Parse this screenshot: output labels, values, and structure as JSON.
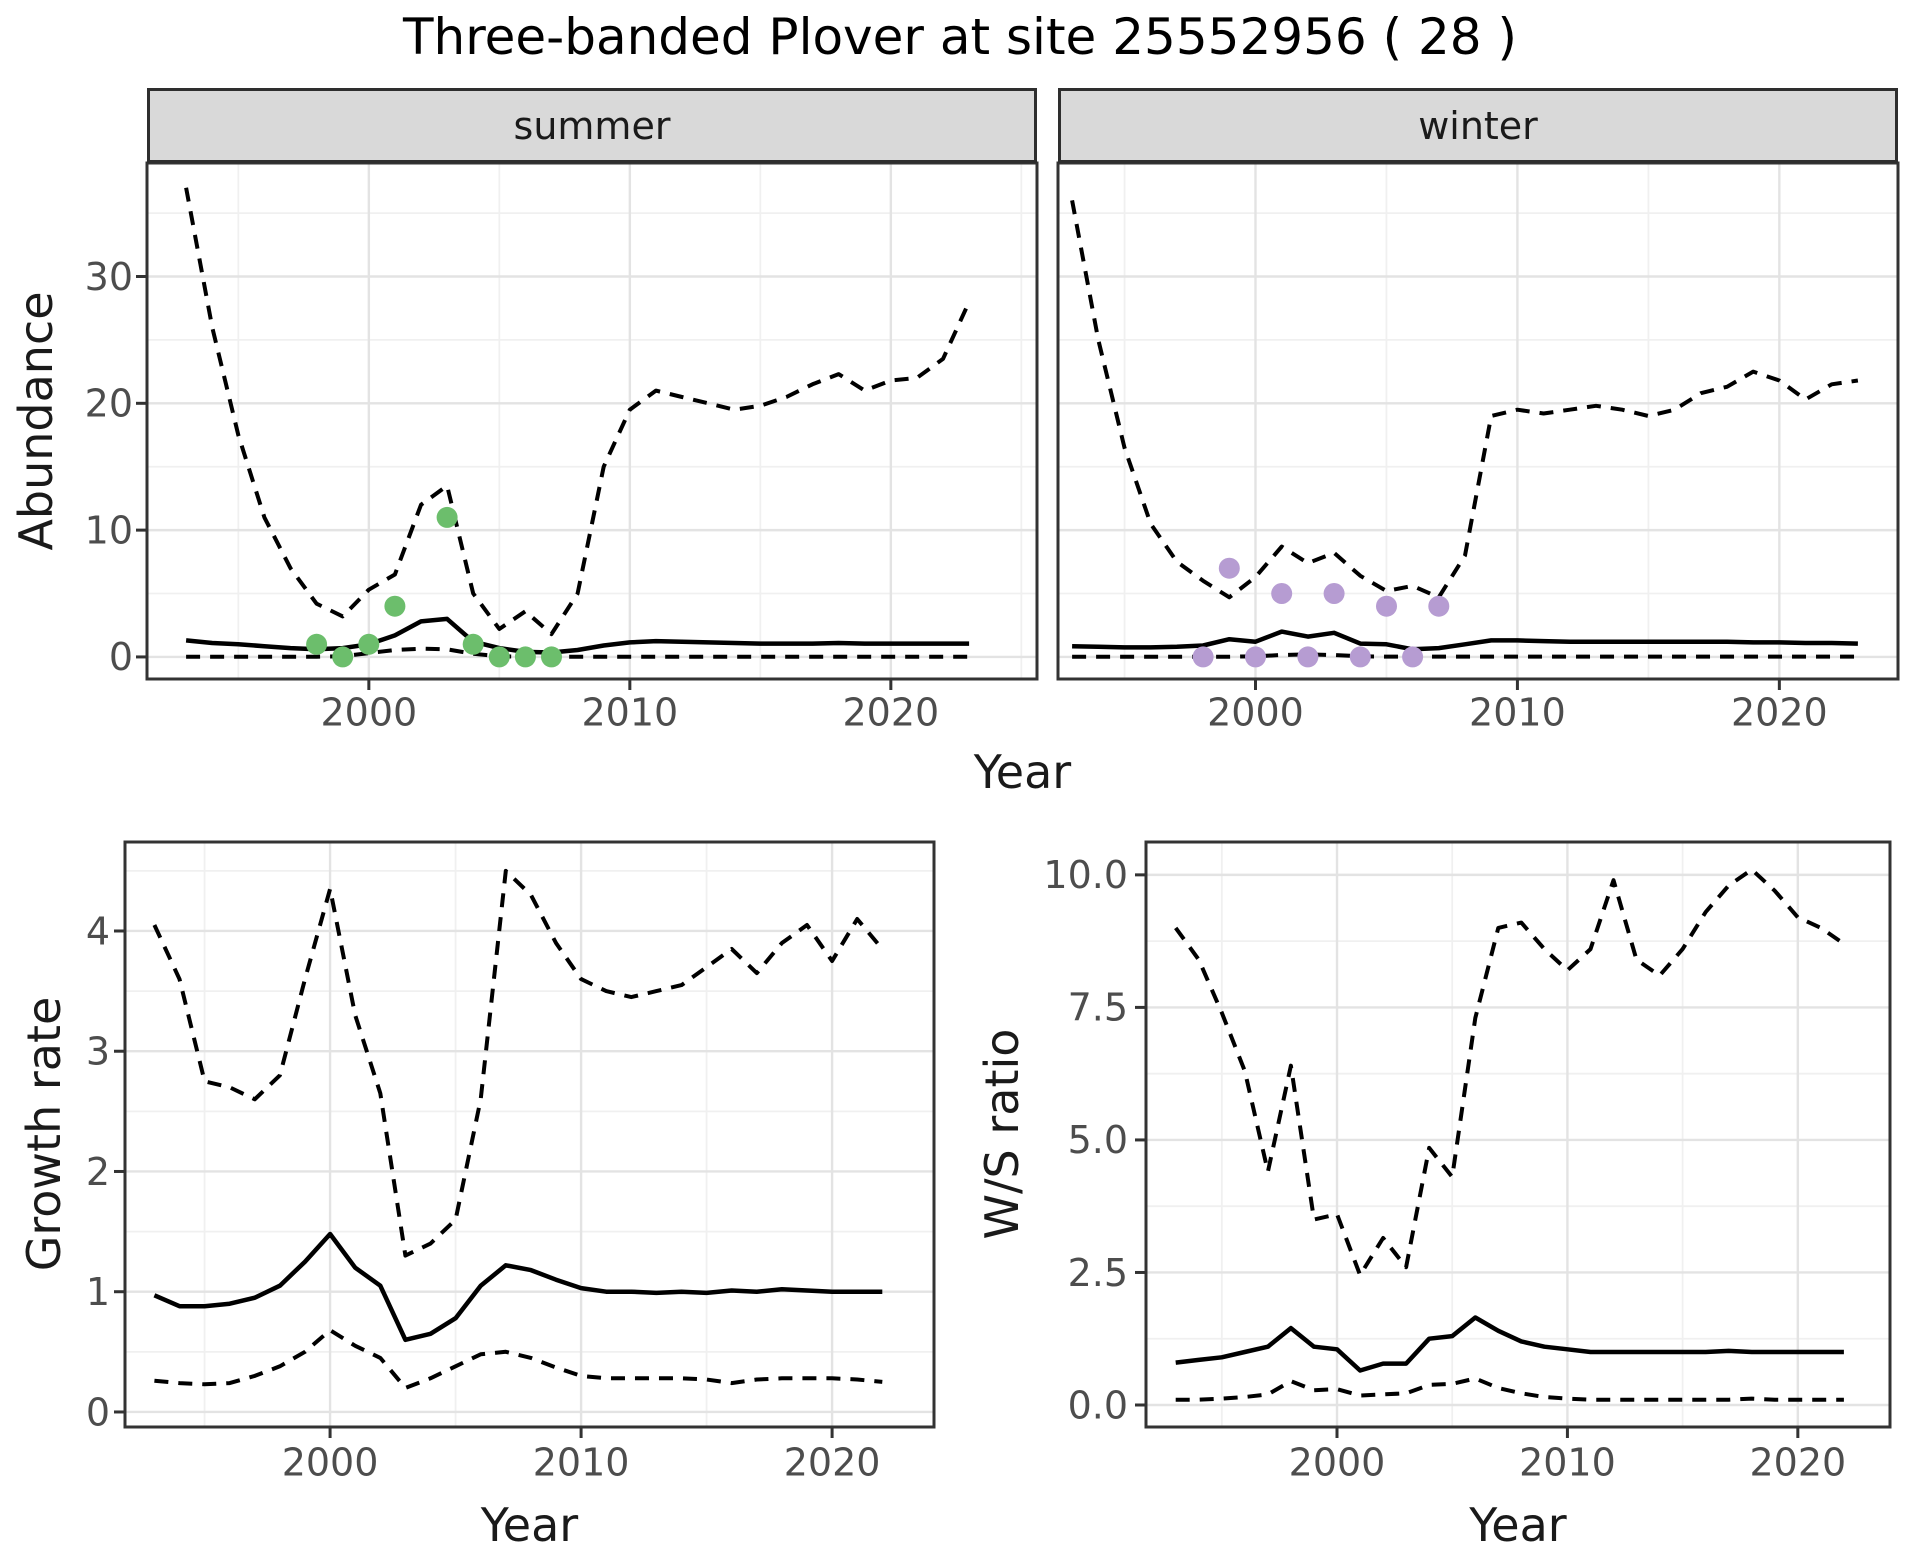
{
  "title": "Three-banded Plover at site 25552956 ( 28 )",
  "facets": {
    "summer": "summer",
    "winter": "winter"
  },
  "axis_titles": {
    "abundance": "Abundance",
    "year": "Year",
    "growth": "Growth rate",
    "ws": "W/S ratio"
  },
  "colors": {
    "summer_points": "#6cbe6c",
    "winter_points": "#b69cd2",
    "line": "#000000",
    "grid_major": "#e3e3e3",
    "grid_minor": "#f0f0f0",
    "panel_border": "#333333",
    "strip_bg": "#d9d9d9",
    "tick_text": "#4d4d4d",
    "text": "#1a1a1a"
  },
  "chart_data": [
    {
      "type": "line",
      "facet": "summer",
      "title": "Abundance - summer facet",
      "xlabel": "Year",
      "ylabel": "Abundance",
      "xlim": [
        1991.5,
        2025.6
      ],
      "ylim": [
        -1.74,
        38.95
      ],
      "grid": true,
      "x": [
        1993,
        1994,
        1995,
        1996,
        1997,
        1998,
        1999,
        2000,
        2001,
        2002,
        2003,
        2004,
        2005,
        2006,
        2007,
        2008,
        2009,
        2010,
        2011,
        2012,
        2013,
        2014,
        2015,
        2016,
        2017,
        2018,
        2019,
        2020,
        2021,
        2022,
        2023
      ],
      "series": [
        {
          "name": "upper-ci",
          "style": "dashed",
          "values": [
            37,
            26,
            17.5,
            11,
            7,
            4.2,
            3.2,
            5.3,
            6.5,
            12,
            13.5,
            5,
            2.2,
            3.6,
            1.8,
            5,
            15,
            19.5,
            21,
            20.5,
            20,
            19.5,
            19.8,
            20.5,
            21.5,
            22.3,
            21,
            21.8,
            22,
            23.5,
            28
          ]
        },
        {
          "name": "median",
          "style": "solid",
          "values": [
            1.3,
            1.1,
            1.0,
            0.85,
            0.7,
            0.6,
            0.7,
            1.0,
            1.7,
            2.8,
            3.0,
            1.2,
            0.7,
            0.4,
            0.35,
            0.55,
            0.9,
            1.15,
            1.25,
            1.2,
            1.15,
            1.1,
            1.05,
            1.05,
            1.05,
            1.1,
            1.05,
            1.05,
            1.05,
            1.05,
            1.05
          ]
        },
        {
          "name": "lower-ci",
          "style": "dashed",
          "values": [
            0.02,
            0.02,
            0.02,
            0.02,
            0.02,
            0.02,
            0.05,
            0.3,
            0.55,
            0.65,
            0.6,
            0.25,
            0.05,
            0.02,
            0.02,
            0.02,
            0.02,
            0.02,
            0.02,
            0.02,
            0.02,
            0.02,
            0.02,
            0.02,
            0.02,
            0.02,
            0.02,
            0.02,
            0.02,
            0.02,
            0.02
          ]
        }
      ],
      "points": {
        "name": "observed-counts-summer",
        "color_key": "summer_points",
        "x": [
          1998,
          1999,
          2000,
          2001,
          2003,
          2004,
          2005,
          2006,
          2007
        ],
        "y": [
          1,
          0,
          1,
          4,
          11,
          1,
          0,
          0,
          0
        ]
      },
      "xticks": {
        "values": [
          2000,
          2010,
          2020
        ],
        "labels": [
          "2000",
          "2010",
          "2020"
        ],
        "minor": [
          1995,
          2005,
          2015,
          2025
        ]
      },
      "yticks": {
        "values": [
          0,
          10,
          20,
          30
        ],
        "labels": [
          "0",
          "10",
          "20",
          "30"
        ],
        "minor": [
          5,
          15,
          25,
          35
        ]
      }
    },
    {
      "type": "line",
      "facet": "winter",
      "title": "Abundance - winter facet",
      "xlabel": "Year",
      "ylabel": "Abundance",
      "xlim": [
        1992.46,
        2024.53
      ],
      "ylim": [
        -1.74,
        38.95
      ],
      "grid": true,
      "x": [
        1993,
        1994,
        1995,
        1996,
        1997,
        1998,
        1999,
        2000,
        2001,
        2002,
        2003,
        2004,
        2005,
        2006,
        2007,
        2008,
        2009,
        2010,
        2011,
        2012,
        2013,
        2014,
        2015,
        2016,
        2017,
        2018,
        2019,
        2020,
        2021,
        2022,
        2023
      ],
      "series": [
        {
          "name": "upper-ci",
          "style": "dashed",
          "values": [
            36,
            25,
            16.5,
            10.5,
            7.5,
            6,
            4.7,
            6.3,
            8.7,
            7.4,
            8.2,
            6.4,
            5.2,
            5.6,
            4.7,
            8,
            19,
            19.5,
            19.2,
            19.5,
            19.8,
            19.5,
            19,
            19.5,
            20.8,
            21.3,
            22.5,
            21.8,
            20.3,
            21.5,
            21.8
          ]
        },
        {
          "name": "median",
          "style": "solid",
          "values": [
            0.85,
            0.8,
            0.75,
            0.75,
            0.8,
            0.9,
            1.4,
            1.2,
            2.0,
            1.6,
            1.9,
            1.05,
            1.0,
            0.6,
            0.7,
            1.0,
            1.3,
            1.3,
            1.25,
            1.2,
            1.2,
            1.2,
            1.2,
            1.2,
            1.2,
            1.2,
            1.15,
            1.15,
            1.1,
            1.1,
            1.05
          ]
        },
        {
          "name": "lower-ci",
          "style": "dashed",
          "values": [
            0.02,
            0.02,
            0.02,
            0.02,
            0.02,
            0.02,
            0.02,
            0.05,
            0.15,
            0.2,
            0.15,
            0.05,
            0.03,
            0.03,
            0.03,
            0.03,
            0.03,
            0.03,
            0.03,
            0.03,
            0.03,
            0.03,
            0.03,
            0.03,
            0.03,
            0.03,
            0.03,
            0.03,
            0.03,
            0.03,
            0.03
          ]
        }
      ],
      "points": {
        "name": "observed-counts-winter",
        "color_key": "winter_points",
        "x": [
          1998,
          1999,
          2000,
          2001,
          2002,
          2003,
          2004,
          2005,
          2006,
          2007
        ],
        "y": [
          0,
          7,
          0,
          5,
          0,
          5,
          0,
          4,
          0,
          4
        ]
      },
      "xticks": {
        "values": [
          2000,
          2010,
          2020
        ],
        "labels": [
          "2000",
          "2010",
          "2020"
        ],
        "minor": [
          1995,
          2005,
          2015
        ]
      },
      "yticks": {
        "values": [
          0,
          10,
          20,
          30
        ],
        "labels": [
          "0",
          "10",
          "20",
          "30"
        ],
        "minor": [
          5,
          15,
          25,
          35
        ]
      }
    },
    {
      "type": "line",
      "facet": "growth-rate",
      "title": "Growth rate",
      "xlabel": "Year",
      "ylabel": "Growth rate",
      "xlim": [
        1991.83,
        2024.06
      ],
      "ylim": [
        -0.125,
        4.74
      ],
      "grid": true,
      "x": [
        1993,
        1994,
        1995,
        1996,
        1997,
        1998,
        1999,
        2000,
        2001,
        2002,
        2003,
        2004,
        2005,
        2006,
        2007,
        2008,
        2009,
        2010,
        2011,
        2012,
        2013,
        2014,
        2015,
        2016,
        2017,
        2018,
        2019,
        2020,
        2021,
        2022
      ],
      "series": [
        {
          "name": "upper-ci",
          "style": "dashed",
          "values": [
            4.05,
            3.6,
            2.75,
            2.7,
            2.6,
            2.8,
            3.6,
            4.35,
            3.3,
            2.65,
            1.3,
            1.4,
            1.6,
            2.6,
            4.5,
            4.3,
            3.9,
            3.6,
            3.5,
            3.45,
            3.5,
            3.55,
            3.7,
            3.85,
            3.65,
            3.9,
            4.05,
            3.75,
            4.1,
            3.85
          ]
        },
        {
          "name": "median",
          "style": "solid",
          "values": [
            0.97,
            0.88,
            0.88,
            0.9,
            0.95,
            1.05,
            1.25,
            1.48,
            1.2,
            1.05,
            0.6,
            0.65,
            0.78,
            1.05,
            1.22,
            1.18,
            1.1,
            1.03,
            1.0,
            1.0,
            0.99,
            1.0,
            0.99,
            1.01,
            1.0,
            1.02,
            1.01,
            1.0,
            1.0,
            1.0
          ]
        },
        {
          "name": "lower-ci",
          "style": "dashed",
          "values": [
            0.26,
            0.24,
            0.23,
            0.24,
            0.3,
            0.38,
            0.5,
            0.68,
            0.55,
            0.45,
            0.2,
            0.28,
            0.38,
            0.48,
            0.5,
            0.45,
            0.37,
            0.3,
            0.28,
            0.28,
            0.28,
            0.28,
            0.27,
            0.24,
            0.27,
            0.28,
            0.28,
            0.28,
            0.27,
            0.25
          ]
        }
      ],
      "points": null,
      "xticks": {
        "values": [
          2000,
          2010,
          2020
        ],
        "labels": [
          "2000",
          "2010",
          "2020"
        ],
        "minor": [
          1995,
          2005,
          2015
        ]
      },
      "yticks": {
        "values": [
          0,
          1,
          2,
          3,
          4
        ],
        "labels": [
          "0",
          "1",
          "2",
          "3",
          "4"
        ],
        "minor": [
          0.5,
          1.5,
          2.5,
          3.5,
          4.5
        ]
      }
    },
    {
      "type": "line",
      "facet": "ws-ratio",
      "title": "W/S ratio",
      "xlabel": "Year",
      "ylabel": "W/S ratio",
      "xlim": [
        1991.71,
        2024.0
      ],
      "ylim": [
        -0.415,
        10.62
      ],
      "grid": true,
      "x": [
        1993,
        1994,
        1995,
        1996,
        1997,
        1998,
        1999,
        2000,
        2001,
        2002,
        2003,
        2004,
        2005,
        2006,
        2007,
        2008,
        2009,
        2010,
        2011,
        2012,
        2013,
        2014,
        2015,
        2016,
        2017,
        2018,
        2019,
        2020,
        2021,
        2022
      ],
      "series": [
        {
          "name": "upper-ci",
          "style": "dashed",
          "values": [
            9.0,
            8.4,
            7.4,
            6.3,
            4.4,
            6.4,
            3.5,
            3.6,
            2.45,
            3.15,
            2.6,
            4.85,
            4.3,
            7.3,
            9.0,
            9.1,
            8.6,
            8.2,
            8.6,
            9.9,
            8.4,
            8.1,
            8.6,
            9.3,
            9.8,
            10.1,
            9.7,
            9.2,
            9.0,
            8.7
          ]
        },
        {
          "name": "median",
          "style": "solid",
          "values": [
            0.8,
            0.85,
            0.9,
            1.0,
            1.1,
            1.45,
            1.1,
            1.05,
            0.65,
            0.78,
            0.78,
            1.25,
            1.3,
            1.65,
            1.4,
            1.2,
            1.1,
            1.05,
            1.0,
            1.0,
            1.0,
            1.0,
            1.0,
            1.0,
            1.02,
            1.0,
            1.0,
            1.0,
            1.0,
            1.0
          ]
        },
        {
          "name": "lower-ci",
          "style": "dashed",
          "values": [
            0.1,
            0.1,
            0.12,
            0.15,
            0.2,
            0.45,
            0.28,
            0.3,
            0.18,
            0.2,
            0.22,
            0.38,
            0.4,
            0.5,
            0.32,
            0.22,
            0.15,
            0.12,
            0.1,
            0.1,
            0.1,
            0.1,
            0.1,
            0.1,
            0.1,
            0.12,
            0.1,
            0.1,
            0.1,
            0.1
          ]
        }
      ],
      "points": null,
      "xticks": {
        "values": [
          2000,
          2010,
          2020
        ],
        "labels": [
          "2000",
          "2010",
          "2020"
        ],
        "minor": [
          1995,
          2005,
          2015
        ]
      },
      "yticks": {
        "values": [
          0,
          2.5,
          5,
          7.5,
          10
        ],
        "labels": [
          "0.0",
          "2.5",
          "5.0",
          "7.5",
          "10.0"
        ],
        "minor": [
          1.25,
          3.75,
          6.25,
          8.75
        ]
      }
    }
  ]
}
